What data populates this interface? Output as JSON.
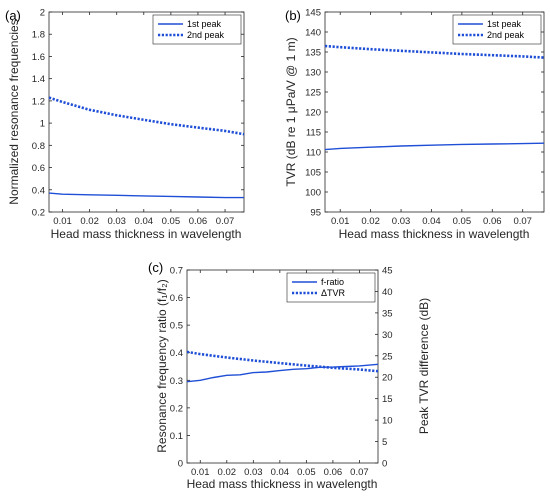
{
  "colors": {
    "series": "#1f4fd6",
    "axis": "#262626"
  },
  "chart_data": [
    {
      "id": "a",
      "panel_label": "(a)",
      "type": "line",
      "xlabel": "Head mass thickness in wavelength",
      "ylabel": "Normalized resonance frequencies",
      "xlim": [
        0.005,
        0.077
      ],
      "ylim": [
        0.2,
        2.0
      ],
      "xticks": [
        0.01,
        0.02,
        0.03,
        0.04,
        0.05,
        0.06,
        0.07
      ],
      "xtick_labels": [
        "0.01",
        "0.02",
        "0.03",
        "0.04",
        "0.05",
        "0.06",
        "0.07"
      ],
      "yticks": [
        0.2,
        0.4,
        0.6,
        0.8,
        1.0,
        1.2,
        1.4,
        1.6,
        1.8,
        2.0
      ],
      "ytick_labels": [
        "0.2",
        "0.4",
        "0.6",
        "0.8",
        "1",
        "1.2",
        "1.4",
        "1.6",
        "1.8",
        "2"
      ],
      "legend_position": "top-right",
      "series": [
        {
          "name": "1st peak",
          "style": "solid",
          "x": [
            0.005,
            0.01,
            0.02,
            0.03,
            0.04,
            0.05,
            0.06,
            0.07,
            0.077
          ],
          "y": [
            0.37,
            0.36,
            0.355,
            0.35,
            0.345,
            0.34,
            0.335,
            0.33,
            0.33
          ]
        },
        {
          "name": "2nd peak",
          "style": "dotted",
          "x": [
            0.005,
            0.01,
            0.02,
            0.03,
            0.04,
            0.05,
            0.06,
            0.07,
            0.077
          ],
          "y": [
            1.23,
            1.19,
            1.12,
            1.07,
            1.03,
            0.99,
            0.96,
            0.93,
            0.9
          ]
        }
      ]
    },
    {
      "id": "b",
      "panel_label": "(b)",
      "type": "line",
      "xlabel": "Head mass thickness in wavelength",
      "ylabel": "TVR (dB re 1 μPa/V @ 1 m)",
      "xlim": [
        0.005,
        0.077
      ],
      "ylim": [
        95,
        145
      ],
      "xticks": [
        0.01,
        0.02,
        0.03,
        0.04,
        0.05,
        0.06,
        0.07
      ],
      "xtick_labels": [
        "0.01",
        "0.02",
        "0.03",
        "0.04",
        "0.05",
        "0.06",
        "0.07"
      ],
      "yticks": [
        95,
        100,
        105,
        110,
        115,
        120,
        125,
        130,
        135,
        140,
        145
      ],
      "ytick_labels": [
        "95",
        "100",
        "105",
        "110",
        "115",
        "120",
        "125",
        "130",
        "135",
        "140",
        "145"
      ],
      "legend_position": "top-right",
      "series": [
        {
          "name": "1st peak",
          "style": "solid",
          "x": [
            0.005,
            0.01,
            0.02,
            0.03,
            0.04,
            0.05,
            0.06,
            0.07,
            0.077
          ],
          "y": [
            110.6,
            110.9,
            111.2,
            111.5,
            111.7,
            111.9,
            112.0,
            112.1,
            112.2
          ]
        },
        {
          "name": "2nd peak",
          "style": "dotted",
          "x": [
            0.005,
            0.01,
            0.02,
            0.03,
            0.04,
            0.05,
            0.06,
            0.07,
            0.077
          ],
          "y": [
            136.5,
            136.2,
            135.7,
            135.3,
            134.9,
            134.5,
            134.2,
            133.9,
            133.6
          ]
        }
      ]
    },
    {
      "id": "c",
      "panel_label": "(c)",
      "type": "line",
      "xlabel": "Head mass thickness in wavelength",
      "ylabel": "Resonance frequency ratio (f₁/f₂)",
      "ylabel_right": "Peak TVR difference (dB)",
      "xlim": [
        0.005,
        0.077
      ],
      "ylim": [
        0,
        0.7
      ],
      "ylim_right": [
        0,
        45
      ],
      "xticks": [
        0.01,
        0.02,
        0.03,
        0.04,
        0.05,
        0.06,
        0.07
      ],
      "xtick_labels": [
        "0.01",
        "0.02",
        "0.03",
        "0.04",
        "0.05",
        "0.06",
        "0.07"
      ],
      "yticks": [
        0,
        0.1,
        0.2,
        0.3,
        0.4,
        0.5,
        0.6,
        0.7
      ],
      "ytick_labels": [
        "0",
        "0.1",
        "0.2",
        "0.3",
        "0.4",
        "0.5",
        "0.6",
        "0.7"
      ],
      "yticks_right": [
        0,
        5,
        10,
        15,
        20,
        25,
        30,
        35,
        40,
        45
      ],
      "ytick_labels_right": [
        "0",
        "5",
        "10",
        "15",
        "20",
        "25",
        "30",
        "35",
        "40",
        "45"
      ],
      "legend_position": "top-right",
      "series": [
        {
          "name": "f-ratio",
          "style": "solid",
          "axis": "left",
          "x": [
            0.005,
            0.01,
            0.015,
            0.02,
            0.025,
            0.03,
            0.035,
            0.04,
            0.045,
            0.05,
            0.055,
            0.06,
            0.065,
            0.07,
            0.077
          ],
          "y": [
            0.295,
            0.3,
            0.31,
            0.318,
            0.32,
            0.328,
            0.33,
            0.335,
            0.34,
            0.342,
            0.347,
            0.348,
            0.35,
            0.352,
            0.358
          ]
        },
        {
          "name": "ΔTVR",
          "style": "dotted",
          "axis": "right",
          "x": [
            0.005,
            0.01,
            0.02,
            0.03,
            0.04,
            0.05,
            0.06,
            0.07,
            0.077
          ],
          "y": [
            25.9,
            25.4,
            24.6,
            23.9,
            23.3,
            22.7,
            22.2,
            21.8,
            21.4
          ]
        }
      ]
    }
  ]
}
